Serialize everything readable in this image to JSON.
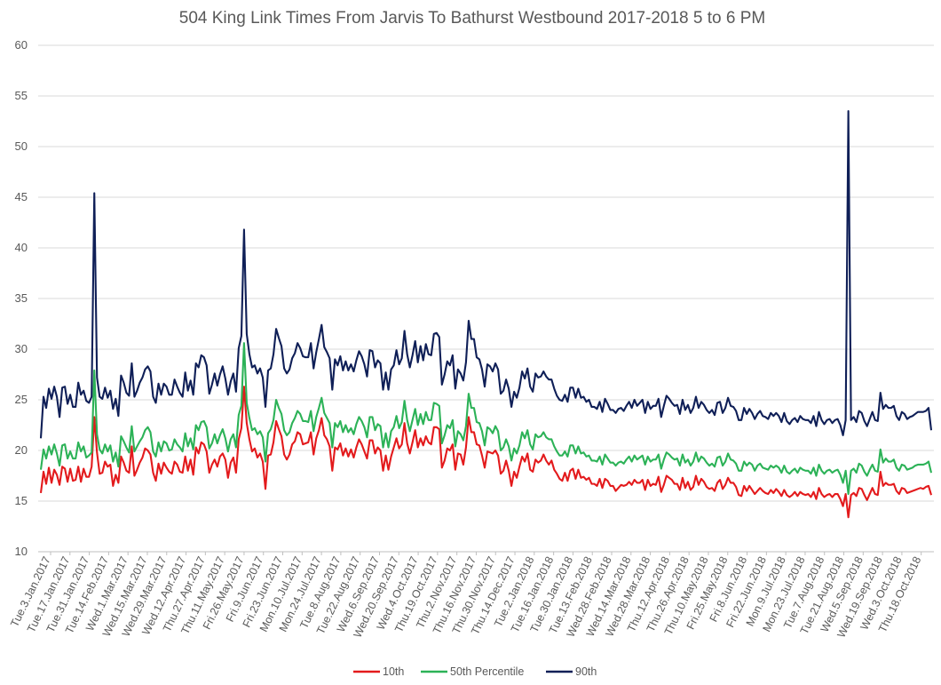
{
  "chart_data": {
    "type": "line",
    "title": "504 King Link Times From Jarvis To Bathurst Westbound 2017-2018 5 to 6 PM",
    "xlabel": "",
    "ylabel": "",
    "ylim": [
      10,
      60
    ],
    "yticks": [
      10,
      15,
      20,
      25,
      30,
      35,
      40,
      45,
      50,
      55,
      60
    ],
    "grid": true,
    "legend_position": "bottom",
    "x_tick_labels": [
      "Tue.3.Jan.2017",
      "Tue.17.Jan.2017",
      "Tue.31.Jan.2017",
      "Tue.14.Feb.2017",
      "Wed.1.Mar.2017",
      "Wed.15.Mar.2017",
      "Wed.29.Mar.2017",
      "Wed.12.Apr.2017",
      "Thu.27.Apr.2017",
      "Thu.11.May.2017",
      "Fri.26.May.2017",
      "Fri.9.Jun.2017",
      "Fri.23.Jun.2017",
      "Mon.10.Jul.2017",
      "Mon.24.Jul.2017",
      "Tue.8.Aug.2017",
      "Tue.22.Aug.2017",
      "Wed.6.Sep.2017",
      "Wed.20.Sep.2017",
      "Wed.4.Oct.2017",
      "Thu.19.Oct.2017",
      "Thu.2.Nov.2017",
      "Thu.16.Nov.2017",
      "Thu.30.Nov.2017",
      "Thu.14.Dec.2017",
      "Tue.2.Jan.2018",
      "Tue.16.Jan.2018",
      "Tue.30.Jan.2018",
      "Tue.13.Feb.2018",
      "Wed.28.Feb.2018",
      "Wed.14.Mar.2018",
      "Wed.28.Mar.2018",
      "Thu.12.Apr.2018",
      "Thu.26.Apr.2018",
      "Thu.10.May.2018",
      "Fri.25.May.2018",
      "Fri.8.Jun.2018",
      "Fri.22.Jun.2018",
      "Mon.9.Jul.2018",
      "Mon.23.Jul.2018",
      "Tue.7.Aug.2018",
      "Tue.21.Aug.2018",
      "Wed.5.Sep.2018",
      "Wed.19.Sep.2018",
      "Wed.3.Oct.2018",
      "Thu.18.Oct.2018"
    ],
    "series": [
      {
        "name": "10th",
        "color": "#e31a1c",
        "values": [
          15.8,
          17.9,
          16.7,
          18.3,
          16.8,
          18.1,
          17.6,
          16.6,
          18.4,
          18.2,
          16.9,
          18.2,
          17.0,
          17.1,
          18.4,
          16.9,
          18.2,
          17.4,
          17.4,
          18.4,
          23.3,
          19.8,
          17.7,
          17.8,
          18.9,
          18.4,
          18.6,
          16.5,
          17.6,
          16.8,
          19.4,
          18.8,
          18.0,
          17.8,
          20.4,
          17.5,
          18.1,
          18.8,
          19.3,
          20.2,
          20.0,
          19.6,
          17.8,
          17.0,
          18.7,
          17.7,
          18.8,
          18.3,
          17.9,
          17.7,
          18.9,
          18.6,
          17.9,
          17.8,
          19.4,
          18.0,
          19.1,
          17.6,
          20.3,
          19.7,
          20.8,
          20.6,
          19.9,
          17.8,
          18.6,
          19.1,
          18.4,
          19.4,
          19.7,
          19.1,
          17.3,
          18.8,
          19.3,
          17.8,
          21.1,
          22.2,
          26.3,
          22.7,
          21.1,
          19.9,
          20.2,
          19.3,
          19.7,
          18.9,
          16.2,
          19.5,
          19.6,
          20.8,
          22.9,
          22.1,
          21.4,
          19.6,
          19.1,
          19.6,
          20.6,
          20.9,
          21.8,
          21.6,
          20.6,
          20.7,
          20.8,
          21.8,
          19.6,
          21.2,
          22.0,
          23.2,
          21.5,
          21.1,
          20.4,
          18.0,
          20.3,
          20.1,
          20.7,
          19.5,
          20.2,
          19.4,
          20.1,
          19.3,
          20.3,
          21.1,
          20.6,
          19.9,
          19.2,
          21.0,
          21.0,
          19.7,
          20.3,
          20.0,
          18.0,
          19.5,
          18.1,
          19.4,
          20.3,
          21.2,
          20.2,
          20.6,
          22.7,
          20.7,
          19.7,
          20.8,
          22.0,
          20.3,
          21.2,
          20.5,
          21.4,
          20.8,
          20.6,
          22.3,
          22.3,
          22.1,
          18.3,
          19.0,
          20.2,
          20.0,
          20.6,
          18.1,
          19.7,
          19.6,
          18.6,
          20.3,
          23.3,
          21.8,
          21.8,
          20.6,
          20.5,
          19.5,
          18.3,
          19.9,
          19.8,
          19.7,
          20.0,
          19.5,
          17.7,
          18.0,
          19.0,
          18.0,
          16.5,
          17.9,
          17.3,
          18.4,
          19.4,
          18.9,
          19.7,
          18.1,
          17.9,
          19.1,
          18.8,
          19.0,
          19.6,
          19.0,
          18.6,
          19.0,
          18.1,
          17.7,
          17.2,
          17.0,
          17.8,
          17.0,
          18.0,
          18.2,
          17.2,
          18.1,
          17.3,
          17.4,
          17.1,
          17.3,
          16.7,
          16.7,
          16.5,
          17.2,
          16.3,
          17.2,
          17.0,
          16.5,
          16.5,
          16.0,
          16.3,
          16.6,
          16.5,
          16.6,
          16.9,
          16.6,
          17.1,
          16.8,
          16.8,
          17.1,
          16.1,
          17.1,
          16.5,
          16.7,
          16.6,
          17.4,
          15.9,
          16.6,
          17.5,
          17.3,
          17.1,
          16.7,
          16.7,
          16.1,
          17.3,
          16.3,
          16.9,
          16.1,
          16.4,
          17.5,
          16.6,
          17.2,
          16.9,
          16.4,
          16.2,
          16.3,
          16.0,
          16.8,
          17.1,
          16.2,
          16.6,
          17.3,
          16.8,
          16.8,
          16.4,
          15.6,
          15.5,
          16.5,
          16.0,
          16.5,
          16.1,
          15.7,
          16.0,
          16.3,
          16.0,
          15.8,
          15.7,
          16.1,
          15.8,
          16.2,
          15.9,
          15.5,
          16.1,
          15.6,
          15.4,
          15.6,
          15.9,
          15.5,
          15.9,
          15.7,
          15.6,
          15.7,
          15.4,
          15.9,
          15.2,
          16.3,
          15.7,
          15.4,
          15.6,
          15.7,
          15.4,
          15.7,
          15.7,
          15.2,
          14.5,
          15.7,
          13.4,
          15.6,
          15.8,
          15.5,
          16.3,
          16.2,
          15.6,
          15.1,
          15.7,
          16.3,
          15.7,
          15.6,
          17.9,
          16.5,
          16.8,
          16.6,
          16.6,
          16.7,
          16.0,
          15.7,
          16.3,
          16.2,
          15.8,
          15.9,
          16.0,
          16.1,
          16.2,
          16.3,
          16.2,
          16.4,
          16.5,
          15.6
        ]
      },
      {
        "name": "50th Percentile",
        "color": "#2cb257",
        "values": [
          18.1,
          20.1,
          19.2,
          20.4,
          19.6,
          20.6,
          19.7,
          18.5,
          20.5,
          20.6,
          19.2,
          19.9,
          19.2,
          19.2,
          20.8,
          19.9,
          20.4,
          19.3,
          19.5,
          19.8,
          27.9,
          21.6,
          20.1,
          19.7,
          20.6,
          19.9,
          20.5,
          18.9,
          19.8,
          18.4,
          21.4,
          20.9,
          20.3,
          19.8,
          22.4,
          19.9,
          20.4,
          20.9,
          21.3,
          22.0,
          22.3,
          21.8,
          19.9,
          19.4,
          20.8,
          19.9,
          20.9,
          20.7,
          20.0,
          20.1,
          21.1,
          20.6,
          20.3,
          19.9,
          21.7,
          20.4,
          21.2,
          20.1,
          22.5,
          22.0,
          22.8,
          22.9,
          22.3,
          20.2,
          20.7,
          21.6,
          20.7,
          21.5,
          22.1,
          21.2,
          19.9,
          21.1,
          21.6,
          20.3,
          23.5,
          24.4,
          30.6,
          24.7,
          23.2,
          22.0,
          22.2,
          21.6,
          21.9,
          21.3,
          18.9,
          21.7,
          22.1,
          23.0,
          25.0,
          24.2,
          23.6,
          22.0,
          21.5,
          21.8,
          22.7,
          23.2,
          23.9,
          23.6,
          22.9,
          22.9,
          22.8,
          23.9,
          21.9,
          23.3,
          24.2,
          25.2,
          23.7,
          23.2,
          22.7,
          20.3,
          22.7,
          22.3,
          22.9,
          21.8,
          22.5,
          21.8,
          22.2,
          21.6,
          22.6,
          23.3,
          22.9,
          22.3,
          21.3,
          23.3,
          23.3,
          22.0,
          22.6,
          22.4,
          20.3,
          21.7,
          20.3,
          21.9,
          22.3,
          23.4,
          22.2,
          22.8,
          24.9,
          23.0,
          21.9,
          23.0,
          24.1,
          22.5,
          23.6,
          22.6,
          23.8,
          23.0,
          23.0,
          24.7,
          24.6,
          24.4,
          20.7,
          21.5,
          22.5,
          22.2,
          23.0,
          20.4,
          21.9,
          21.6,
          21.0,
          22.4,
          25.6,
          24.2,
          24.2,
          22.8,
          22.7,
          21.9,
          20.5,
          22.3,
          22.1,
          21.7,
          22.4,
          21.9,
          20.0,
          20.3,
          21.1,
          20.4,
          19.0,
          20.2,
          19.7,
          20.5,
          21.8,
          21.2,
          22.0,
          20.6,
          20.1,
          21.6,
          21.3,
          21.4,
          21.8,
          21.3,
          21.1,
          21.1,
          20.4,
          19.9,
          19.5,
          19.5,
          19.9,
          19.4,
          20.5,
          20.5,
          19.7,
          20.4,
          19.7,
          19.8,
          19.4,
          19.5,
          19.0,
          19.0,
          18.9,
          19.4,
          18.6,
          19.6,
          19.2,
          18.8,
          18.8,
          18.5,
          18.8,
          18.9,
          18.7,
          19.1,
          19.4,
          18.9,
          19.5,
          19.1,
          19.3,
          19.5,
          18.6,
          19.4,
          18.9,
          19.1,
          19.1,
          19.6,
          18.2,
          19.1,
          19.8,
          19.6,
          19.3,
          19.1,
          19.2,
          18.5,
          19.6,
          18.8,
          19.1,
          18.5,
          18.9,
          19.8,
          18.9,
          19.4,
          19.2,
          18.8,
          18.5,
          18.7,
          18.4,
          19.3,
          19.4,
          18.5,
          18.9,
          19.7,
          19.1,
          19.0,
          18.7,
          18.0,
          18.0,
          18.9,
          18.5,
          18.8,
          18.6,
          18.0,
          18.5,
          18.7,
          18.3,
          18.2,
          18.1,
          18.5,
          18.3,
          18.5,
          18.3,
          17.8,
          18.5,
          17.9,
          17.7,
          18.0,
          18.2,
          17.8,
          18.3,
          18.1,
          18.0,
          18.0,
          17.7,
          18.3,
          17.5,
          18.6,
          18.0,
          17.7,
          18.0,
          18.1,
          17.8,
          18.0,
          18.1,
          17.6,
          16.8,
          18.0,
          15.7,
          18.0,
          18.2,
          17.8,
          18.7,
          18.5,
          17.9,
          17.5,
          18.1,
          18.6,
          18.0,
          17.9,
          20.1,
          18.8,
          19.2,
          18.9,
          18.9,
          19.1,
          18.3,
          18.0,
          18.6,
          18.5,
          18.1,
          18.2,
          18.3,
          18.5,
          18.6,
          18.6,
          18.6,
          18.7,
          18.9,
          17.8
        ]
      },
      {
        "name": "90th",
        "color": "#0f1f57",
        "values": [
          21.2,
          25.3,
          24.2,
          26.1,
          25.1,
          26.3,
          25.3,
          23.3,
          26.2,
          26.3,
          24.6,
          25.5,
          24.3,
          24.3,
          26.7,
          25.5,
          25.9,
          24.9,
          24.7,
          25.3,
          45.4,
          27.2,
          25.3,
          25.1,
          26.2,
          25.2,
          25.9,
          24.1,
          25.1,
          23.4,
          27.4,
          26.7,
          25.7,
          25.4,
          28.6,
          25.3,
          25.9,
          26.7,
          27.2,
          28.0,
          28.3,
          27.8,
          25.3,
          24.7,
          26.6,
          25.5,
          26.6,
          26.3,
          25.5,
          25.5,
          27.0,
          26.3,
          25.7,
          25.3,
          27.7,
          25.9,
          26.9,
          25.5,
          28.6,
          28.2,
          29.4,
          29.2,
          28.4,
          25.6,
          26.5,
          27.6,
          26.4,
          27.5,
          28.3,
          27.1,
          25.5,
          26.8,
          27.6,
          25.8,
          30.1,
          31.3,
          41.8,
          31.5,
          29.5,
          28.2,
          28.4,
          27.6,
          28.1,
          27.2,
          24.3,
          27.9,
          28.1,
          29.5,
          32.0,
          31.1,
          30.3,
          28.1,
          27.6,
          28.0,
          29.1,
          29.6,
          30.6,
          30.1,
          29.3,
          29.2,
          29.2,
          30.6,
          28.1,
          29.7,
          31.0,
          32.4,
          30.2,
          29.7,
          29.1,
          26.0,
          29.0,
          28.4,
          29.3,
          27.9,
          28.8,
          27.9,
          28.5,
          27.8,
          28.9,
          29.8,
          29.3,
          28.5,
          27.3,
          29.9,
          29.8,
          28.2,
          28.9,
          28.6,
          26.0,
          27.7,
          26.0,
          28.0,
          28.4,
          29.9,
          28.5,
          29.1,
          31.8,
          29.5,
          28.2,
          29.4,
          30.8,
          28.7,
          30.3,
          28.9,
          30.5,
          29.5,
          29.4,
          31.5,
          31.6,
          31.2,
          26.5,
          27.5,
          28.8,
          28.4,
          29.4,
          26.1,
          28.0,
          27.6,
          26.9,
          28.7,
          32.8,
          31.0,
          31.0,
          29.2,
          29.0,
          28.0,
          26.3,
          28.5,
          28.3,
          27.8,
          28.6,
          28.0,
          25.6,
          25.9,
          27.0,
          26.1,
          24.3,
          25.8,
          25.2,
          26.2,
          27.8,
          27.1,
          28.1,
          26.3,
          25.8,
          27.6,
          27.2,
          27.3,
          27.8,
          27.3,
          27.0,
          27.0,
          26.1,
          25.4,
          25.0,
          24.9,
          25.5,
          24.8,
          26.2,
          26.2,
          25.2,
          26.1,
          25.2,
          25.3,
          24.8,
          25.0,
          24.3,
          24.3,
          24.1,
          24.8,
          23.8,
          25.1,
          24.6,
          24.0,
          24.0,
          23.7,
          24.1,
          24.2,
          23.9,
          24.4,
          24.8,
          24.2,
          25.0,
          24.4,
          24.7,
          25.0,
          23.7,
          24.8,
          24.1,
          24.4,
          24.4,
          25.1,
          23.3,
          24.4,
          25.4,
          25.1,
          24.7,
          24.4,
          24.5,
          23.6,
          25.0,
          24.0,
          24.5,
          23.7,
          24.2,
          25.3,
          24.2,
          24.8,
          24.5,
          24.0,
          23.7,
          24.0,
          23.5,
          24.7,
          24.8,
          23.7,
          24.2,
          25.2,
          24.4,
          24.3,
          23.9,
          23.0,
          23.0,
          24.2,
          23.6,
          24.1,
          23.7,
          23.1,
          23.6,
          23.9,
          23.4,
          23.3,
          23.1,
          23.7,
          23.4,
          23.7,
          23.4,
          22.8,
          23.7,
          22.9,
          22.6,
          23.0,
          23.2,
          22.8,
          23.4,
          23.1,
          23.0,
          23.0,
          22.7,
          23.4,
          22.4,
          23.8,
          23.0,
          22.6,
          23.0,
          23.1,
          22.7,
          23.0,
          23.1,
          22.5,
          21.5,
          23.0,
          53.5,
          23.0,
          23.3,
          22.8,
          23.9,
          23.7,
          22.9,
          22.4,
          23.1,
          23.8,
          23.0,
          22.9,
          25.7,
          24.1,
          24.5,
          24.2,
          24.2,
          24.4,
          23.4,
          23.0,
          23.8,
          23.6,
          23.1,
          23.3,
          23.4,
          23.6,
          23.8,
          23.8,
          23.8,
          23.9,
          24.2,
          22.0
        ]
      }
    ]
  }
}
